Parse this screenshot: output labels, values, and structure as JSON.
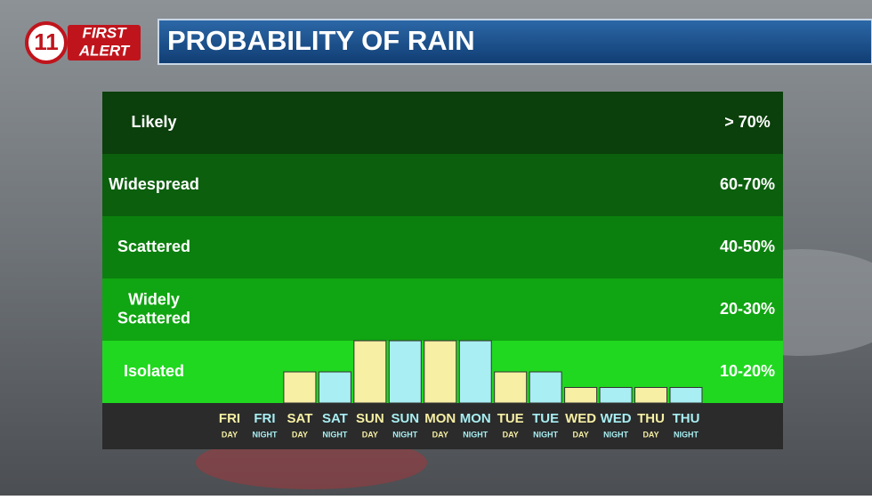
{
  "logo": {
    "number": "11",
    "line1": "FIRST",
    "line2": "ALERT"
  },
  "chart_data": {
    "type": "bar",
    "title": "PROBABILITY OF RAIN",
    "bands": [
      {
        "label": "Likely",
        "range": "> 70%",
        "color": "#0b3f0b"
      },
      {
        "label": "Widespread",
        "range": "60-70%",
        "color": "#0b5f0d"
      },
      {
        "label": "Scattered",
        "range": "40-50%",
        "color": "#0b800e"
      },
      {
        "label": "Widely Scattered",
        "range": "20-30%",
        "color": "#10a512"
      },
      {
        "label": "Isolated",
        "range": "10-20%",
        "color": "#20d820"
      }
    ],
    "categories": [
      {
        "day": "FRI",
        "part": "DAY"
      },
      {
        "day": "FRI",
        "part": "NIGHT"
      },
      {
        "day": "SAT",
        "part": "DAY"
      },
      {
        "day": "SAT",
        "part": "NIGHT"
      },
      {
        "day": "SUN",
        "part": "DAY"
      },
      {
        "day": "SUN",
        "part": "NIGHT"
      },
      {
        "day": "MON",
        "part": "DAY"
      },
      {
        "day": "MON",
        "part": "NIGHT"
      },
      {
        "day": "TUE",
        "part": "DAY"
      },
      {
        "day": "TUE",
        "part": "NIGHT"
      },
      {
        "day": "WED",
        "part": "DAY"
      },
      {
        "day": "WED",
        "part": "NIGHT"
      },
      {
        "day": "THU",
        "part": "DAY"
      },
      {
        "day": "THU",
        "part": "NIGHT"
      }
    ],
    "values": [
      null,
      null,
      10,
      10,
      20,
      20,
      20,
      20,
      10,
      10,
      5,
      5,
      5,
      5
    ],
    "colors": [
      "#f6efa4",
      "#a8eef2",
      "#f6efa4",
      "#a8eef2",
      "#f6efa4",
      "#a8eef2",
      "#f6efa4",
      "#a8eef2",
      "#f6efa4",
      "#a8eef2",
      "#f6efa4",
      "#a8eef2",
      "#f6efa4",
      "#a8eef2"
    ],
    "ylim": [
      0,
      20
    ]
  }
}
